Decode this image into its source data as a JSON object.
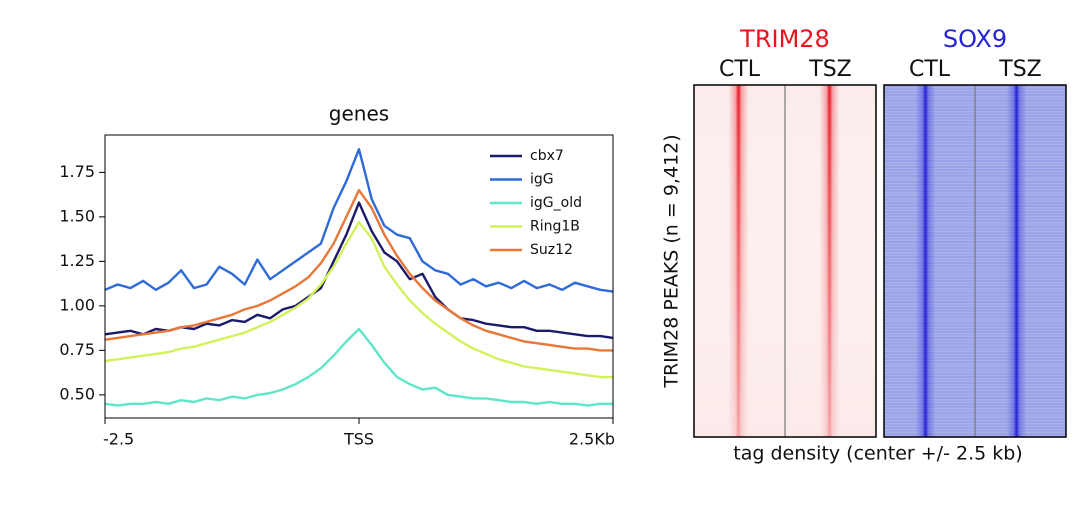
{
  "chart_data": [
    {
      "type": "line",
      "title": "genes",
      "x": [
        -2.5,
        -2.375,
        -2.25,
        -2.125,
        -2,
        -1.875,
        -1.75,
        -1.625,
        -1.5,
        -1.375,
        -1.25,
        -1.125,
        -1,
        -0.875,
        -0.75,
        -0.625,
        -0.5,
        -0.375,
        -0.25,
        -0.125,
        0,
        0.125,
        0.25,
        0.375,
        0.5,
        0.625,
        0.75,
        0.875,
        1,
        1.125,
        1.25,
        1.375,
        1.5,
        1.625,
        1.75,
        1.875,
        2,
        2.125,
        2.25,
        2.375,
        2.5
      ],
      "series": [
        {
          "name": "cbx7",
          "color": "#1b1b6b",
          "values": [
            0.84,
            0.85,
            0.86,
            0.84,
            0.87,
            0.86,
            0.88,
            0.87,
            0.9,
            0.89,
            0.92,
            0.91,
            0.95,
            0.93,
            0.98,
            1.0,
            1.05,
            1.1,
            1.25,
            1.4,
            1.58,
            1.42,
            1.3,
            1.25,
            1.15,
            1.18,
            1.05,
            0.98,
            0.93,
            0.92,
            0.9,
            0.89,
            0.88,
            0.88,
            0.86,
            0.86,
            0.85,
            0.84,
            0.83,
            0.83,
            0.82
          ]
        },
        {
          "name": "igG",
          "color": "#2f6bd8",
          "values": [
            1.09,
            1.12,
            1.1,
            1.14,
            1.09,
            1.13,
            1.2,
            1.1,
            1.12,
            1.22,
            1.18,
            1.12,
            1.26,
            1.15,
            1.2,
            1.25,
            1.3,
            1.35,
            1.55,
            1.7,
            1.88,
            1.6,
            1.45,
            1.4,
            1.38,
            1.25,
            1.2,
            1.18,
            1.12,
            1.15,
            1.11,
            1.13,
            1.1,
            1.14,
            1.1,
            1.12,
            1.09,
            1.13,
            1.11,
            1.09,
            1.08
          ]
        },
        {
          "name": "igG_old",
          "color": "#5fe6c9",
          "values": [
            0.45,
            0.44,
            0.45,
            0.45,
            0.46,
            0.45,
            0.47,
            0.46,
            0.48,
            0.47,
            0.49,
            0.48,
            0.5,
            0.51,
            0.53,
            0.56,
            0.6,
            0.65,
            0.72,
            0.8,
            0.87,
            0.78,
            0.68,
            0.6,
            0.56,
            0.53,
            0.54,
            0.5,
            0.49,
            0.48,
            0.48,
            0.47,
            0.46,
            0.46,
            0.45,
            0.46,
            0.45,
            0.45,
            0.44,
            0.45,
            0.45
          ]
        },
        {
          "name": "Ring1B",
          "color": "#d2f25b",
          "values": [
            0.69,
            0.7,
            0.71,
            0.72,
            0.73,
            0.74,
            0.76,
            0.77,
            0.79,
            0.81,
            0.83,
            0.85,
            0.88,
            0.91,
            0.95,
            0.99,
            1.04,
            1.12,
            1.22,
            1.35,
            1.47,
            1.38,
            1.22,
            1.12,
            1.03,
            0.96,
            0.9,
            0.85,
            0.8,
            0.76,
            0.73,
            0.7,
            0.68,
            0.66,
            0.65,
            0.64,
            0.63,
            0.62,
            0.61,
            0.6,
            0.6
          ]
        },
        {
          "name": "Suz12",
          "color": "#e8773a",
          "values": [
            0.81,
            0.82,
            0.83,
            0.84,
            0.85,
            0.86,
            0.88,
            0.89,
            0.91,
            0.93,
            0.95,
            0.98,
            1.0,
            1.03,
            1.07,
            1.11,
            1.16,
            1.24,
            1.35,
            1.5,
            1.65,
            1.55,
            1.4,
            1.28,
            1.18,
            1.1,
            1.03,
            0.98,
            0.93,
            0.89,
            0.86,
            0.84,
            0.82,
            0.8,
            0.79,
            0.78,
            0.77,
            0.76,
            0.76,
            0.75,
            0.75
          ]
        }
      ],
      "xlim": [
        -2.5,
        2.5
      ],
      "xticks": [
        -2.5,
        {
          "value": 0,
          "label": "TSS"
        },
        {
          "value": 2.5,
          "label": "2.5Kb"
        }
      ],
      "ylim": [
        0.37,
        1.96
      ],
      "yticks": [
        {
          "value": 0.5,
          "label": "0.50"
        },
        {
          "value": 0.75,
          "label": "0.75"
        },
        {
          "value": 1.0,
          "label": "1.00"
        },
        {
          "value": 1.25,
          "label": "1.25"
        },
        {
          "value": 1.5,
          "label": "1.50"
        },
        {
          "value": 1.75,
          "label": "1.75"
        }
      ],
      "legend": "upper right"
    },
    {
      "type": "heatmap",
      "ylabel": "TRIM28 PEAKS (n = 9,412)",
      "xlabel": "tag density (center +/- 2.5 kb)",
      "panels": [
        {
          "name": "TRIM28",
          "color": "#e8141e",
          "columns": [
            "CTL",
            "TSZ"
          ]
        },
        {
          "name": "SOX9",
          "color": "#2424d6",
          "columns": [
            "CTL",
            "TSZ"
          ]
        }
      ]
    }
  ]
}
